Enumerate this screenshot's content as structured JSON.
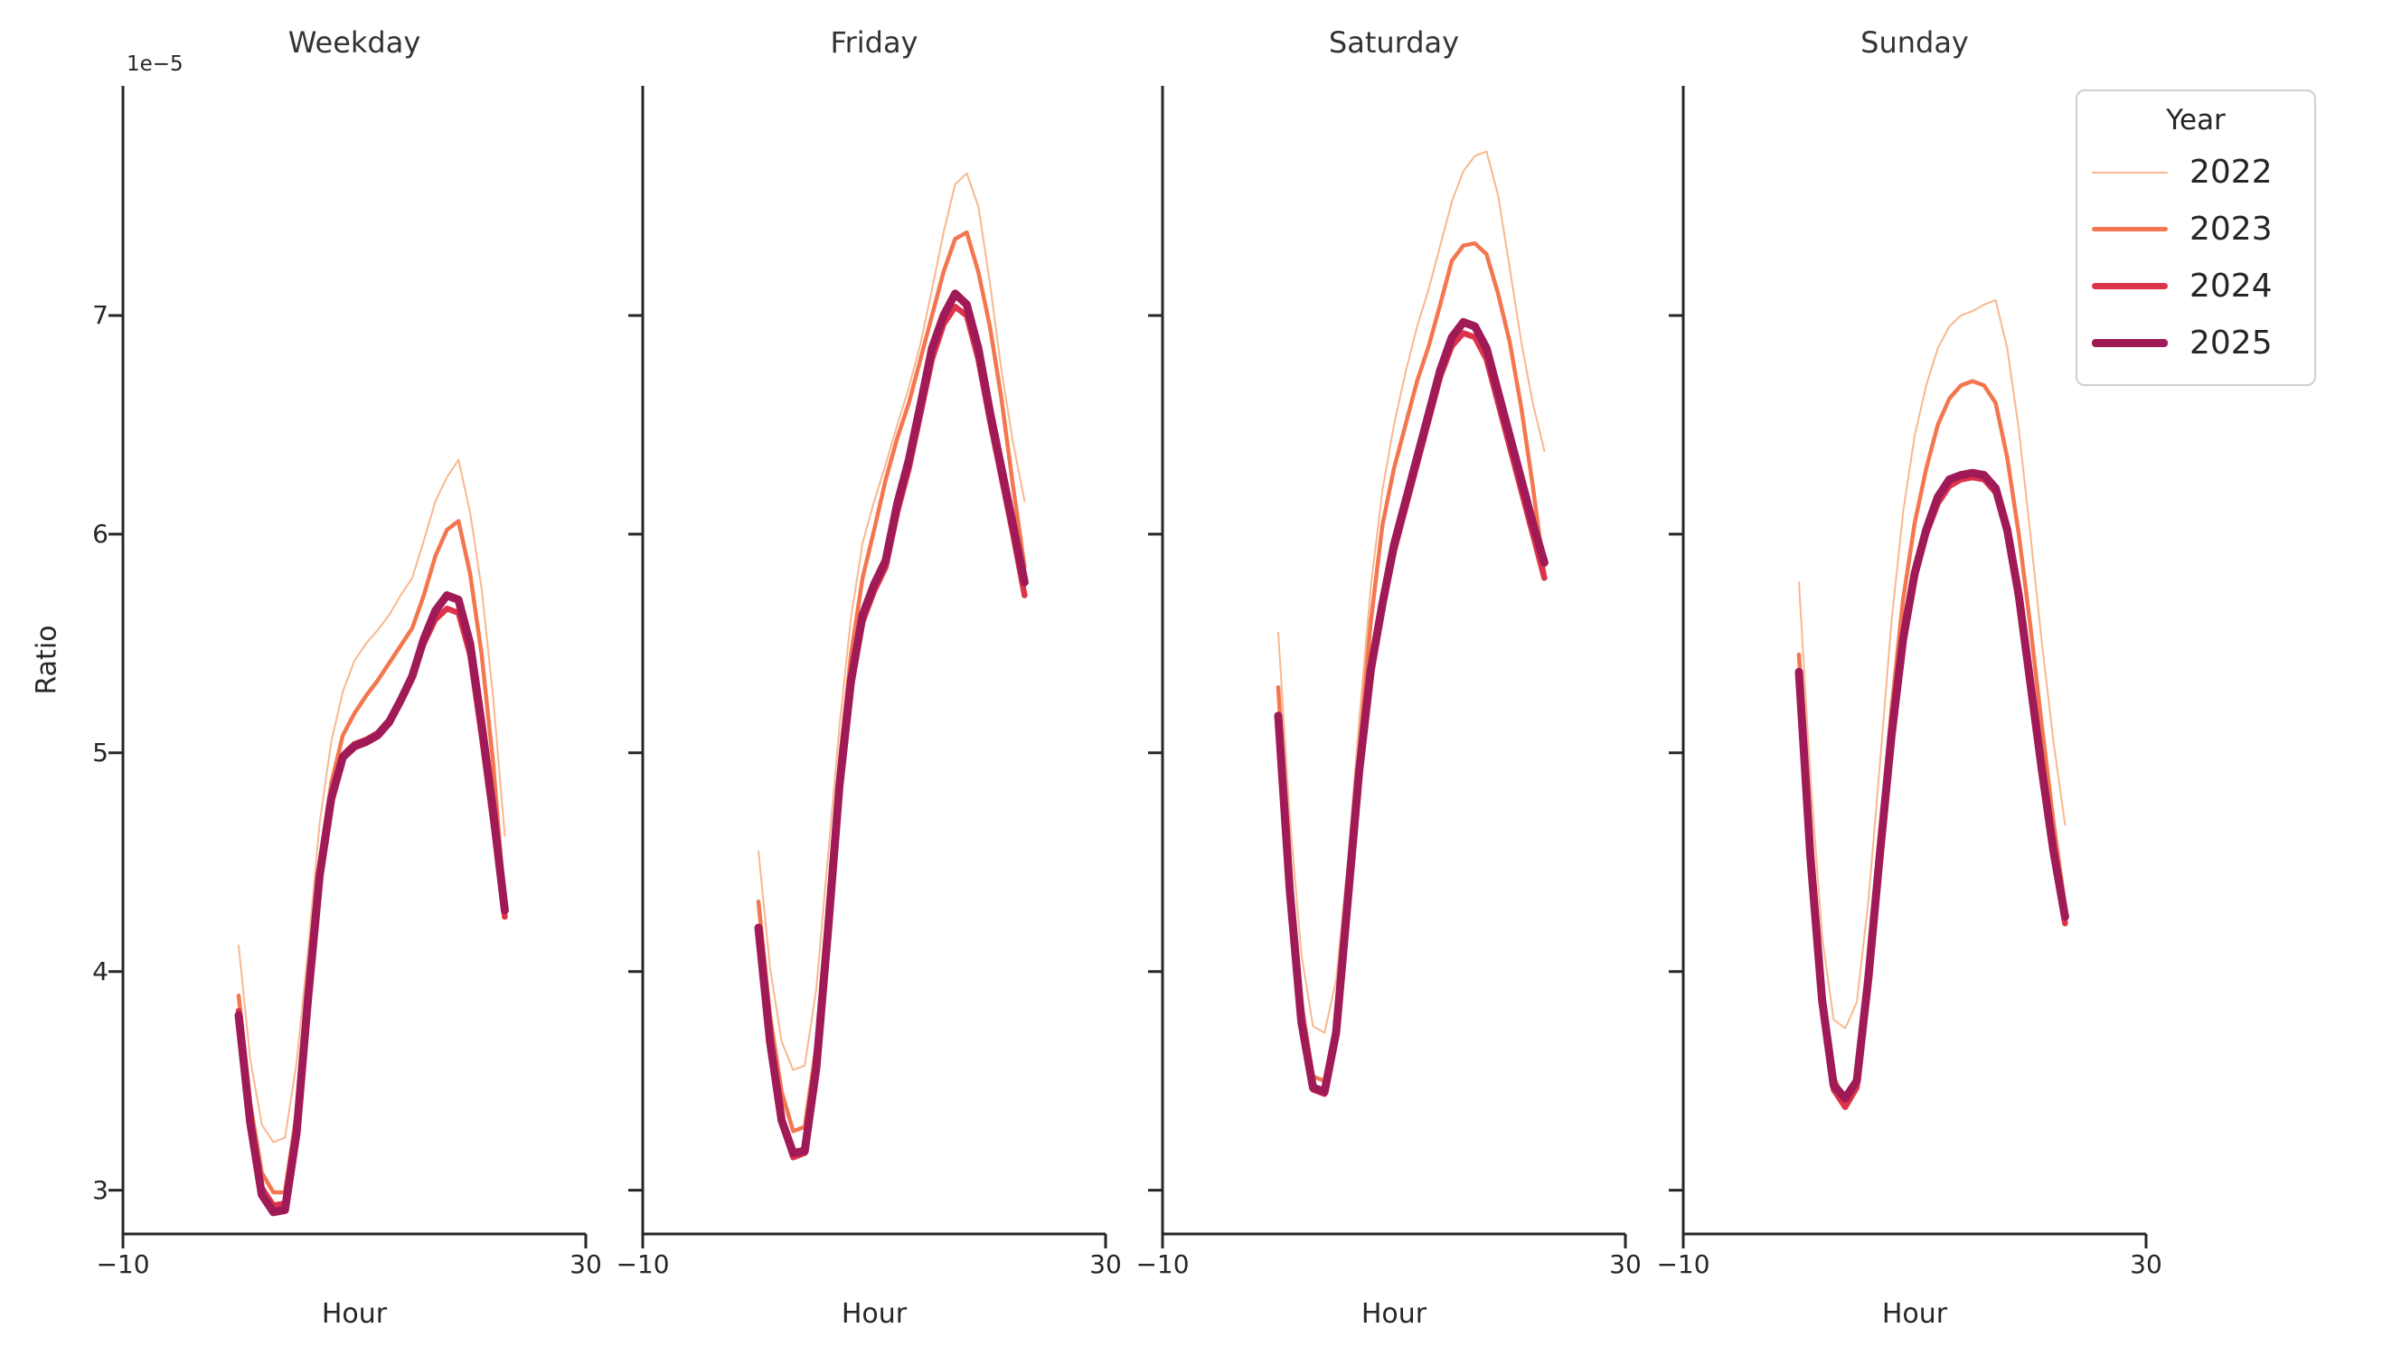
{
  "axes": {
    "ylabel": "Ratio",
    "xlabel": "Hour",
    "offset_label": "1e−5",
    "xlim": [
      -10,
      30
    ],
    "ylim": [
      2.8,
      8.05
    ],
    "xticks": [
      -10,
      30
    ],
    "xticklabels": [
      "−10",
      "30"
    ],
    "yticks": [
      3,
      4,
      5,
      6,
      7
    ],
    "yticklabels": [
      "3",
      "4",
      "5",
      "6",
      "7"
    ],
    "axis_color": "#262626",
    "grid": false
  },
  "legend": {
    "title": "Year",
    "position": "upper right",
    "entries": [
      {
        "label": "2022",
        "color": "#F8B78E",
        "linewidth": 2
      },
      {
        "label": "2023",
        "color": "#F4764F",
        "linewidth": 4.5
      },
      {
        "label": "2024",
        "color": "#DC3349",
        "linewidth": 6.5
      },
      {
        "label": "2025",
        "color": "#A01A58",
        "linewidth": 9
      }
    ]
  },
  "chart_data": [
    {
      "type": "line",
      "title": "Weekday",
      "xlabel": "Hour",
      "ylabel": "Ratio (1e-5)",
      "x": [
        0,
        1,
        2,
        3,
        4,
        5,
        6,
        7,
        8,
        9,
        10,
        11,
        12,
        13,
        14,
        15,
        16,
        17,
        18,
        19,
        20,
        21,
        22,
        23
      ],
      "series": [
        {
          "name": "2022",
          "color": "#F8B78E",
          "linewidth": 2,
          "values": [
            4.12,
            3.6,
            3.3,
            3.22,
            3.24,
            3.58,
            4.1,
            4.68,
            5.05,
            5.28,
            5.42,
            5.5,
            5.56,
            5.63,
            5.72,
            5.8,
            5.97,
            6.15,
            6.26,
            6.34,
            6.1,
            5.75,
            5.25,
            4.62
          ]
        },
        {
          "name": "2023",
          "color": "#F4764F",
          "linewidth": 4.5,
          "values": [
            3.89,
            3.4,
            3.08,
            2.99,
            2.99,
            3.35,
            3.95,
            4.5,
            4.86,
            5.08,
            5.18,
            5.26,
            5.33,
            5.41,
            5.49,
            5.57,
            5.72,
            5.9,
            6.02,
            6.06,
            5.82,
            5.45,
            4.95,
            4.3
          ]
        },
        {
          "name": "2024",
          "color": "#DC3349",
          "linewidth": 6.5,
          "values": [
            3.82,
            3.33,
            3.01,
            2.93,
            2.94,
            3.28,
            3.9,
            4.46,
            4.8,
            4.99,
            5.04,
            5.06,
            5.09,
            5.15,
            5.25,
            5.36,
            5.5,
            5.61,
            5.66,
            5.64,
            5.45,
            5.08,
            4.68,
            4.25
          ]
        },
        {
          "name": "2025",
          "color": "#A01A58",
          "linewidth": 9,
          "values": [
            3.8,
            3.31,
            2.98,
            2.9,
            2.91,
            3.26,
            3.88,
            4.44,
            4.79,
            4.98,
            5.03,
            5.05,
            5.08,
            5.14,
            5.24,
            5.35,
            5.52,
            5.65,
            5.72,
            5.7,
            5.5,
            5.13,
            4.73,
            4.28
          ]
        }
      ]
    },
    {
      "type": "line",
      "title": "Friday",
      "xlabel": "Hour",
      "ylabel": "Ratio (1e-5)",
      "x": [
        0,
        1,
        2,
        3,
        4,
        5,
        6,
        7,
        8,
        9,
        10,
        11,
        12,
        13,
        14,
        15,
        16,
        17,
        18,
        19,
        20,
        21,
        22,
        23
      ],
      "series": [
        {
          "name": "2022",
          "color": "#F8B78E",
          "linewidth": 2,
          "values": [
            4.55,
            4.02,
            3.68,
            3.55,
            3.57,
            3.92,
            4.52,
            5.12,
            5.62,
            5.96,
            6.15,
            6.32,
            6.5,
            6.67,
            6.87,
            7.12,
            7.38,
            7.6,
            7.65,
            7.5,
            7.15,
            6.75,
            6.42,
            6.15
          ]
        },
        {
          "name": "2023",
          "color": "#F4764F",
          "linewidth": 4.5,
          "values": [
            4.32,
            3.8,
            3.45,
            3.27,
            3.29,
            3.66,
            4.3,
            4.95,
            5.45,
            5.8,
            6.02,
            6.25,
            6.44,
            6.6,
            6.8,
            7.0,
            7.2,
            7.35,
            7.38,
            7.2,
            6.95,
            6.62,
            6.22,
            5.85
          ]
        },
        {
          "name": "2024",
          "color": "#DC3349",
          "linewidth": 6.5,
          "values": [
            4.18,
            3.66,
            3.31,
            3.15,
            3.17,
            3.55,
            4.16,
            4.82,
            5.3,
            5.6,
            5.74,
            5.85,
            6.1,
            6.3,
            6.55,
            6.8,
            6.96,
            7.04,
            7.0,
            6.8,
            6.52,
            6.26,
            6.0,
            5.72
          ]
        },
        {
          "name": "2025",
          "color": "#A01A58",
          "linewidth": 9,
          "values": [
            4.2,
            3.68,
            3.32,
            3.17,
            3.18,
            3.56,
            4.18,
            4.85,
            5.33,
            5.63,
            5.77,
            5.88,
            6.14,
            6.34,
            6.59,
            6.85,
            7.0,
            7.1,
            7.05,
            6.85,
            6.56,
            6.3,
            6.04,
            5.78
          ]
        }
      ]
    },
    {
      "type": "line",
      "title": "Saturday",
      "xlabel": "Hour",
      "ylabel": "Ratio (1e-5)",
      "x": [
        0,
        1,
        2,
        3,
        4,
        5,
        6,
        7,
        8,
        9,
        10,
        11,
        12,
        13,
        14,
        15,
        16,
        17,
        18,
        19,
        20,
        21,
        22,
        23
      ],
      "series": [
        {
          "name": "2022",
          "color": "#F8B78E",
          "linewidth": 2,
          "values": [
            5.55,
            4.7,
            4.08,
            3.75,
            3.72,
            3.96,
            4.5,
            5.15,
            5.76,
            6.2,
            6.5,
            6.74,
            6.95,
            7.12,
            7.32,
            7.52,
            7.66,
            7.73,
            7.75,
            7.55,
            7.22,
            6.88,
            6.6,
            6.38
          ]
        },
        {
          "name": "2023",
          "color": "#F4764F",
          "linewidth": 4.5,
          "values": [
            5.3,
            4.46,
            3.86,
            3.52,
            3.5,
            3.76,
            4.35,
            5.0,
            5.6,
            6.04,
            6.3,
            6.5,
            6.7,
            6.86,
            7.05,
            7.25,
            7.32,
            7.33,
            7.28,
            7.1,
            6.88,
            6.58,
            6.22,
            5.82
          ]
        },
        {
          "name": "2024",
          "color": "#DC3349",
          "linewidth": 6.5,
          "values": [
            5.15,
            4.35,
            3.76,
            3.46,
            3.44,
            3.7,
            4.3,
            4.9,
            5.36,
            5.66,
            5.92,
            6.12,
            6.32,
            6.52,
            6.72,
            6.86,
            6.92,
            6.9,
            6.8,
            6.6,
            6.4,
            6.2,
            6.0,
            5.8
          ]
        },
        {
          "name": "2025",
          "color": "#A01A58",
          "linewidth": 9,
          "values": [
            5.17,
            4.37,
            3.77,
            3.47,
            3.45,
            3.72,
            4.32,
            4.92,
            5.38,
            5.68,
            5.95,
            6.15,
            6.35,
            6.55,
            6.75,
            6.9,
            6.97,
            6.95,
            6.85,
            6.65,
            6.45,
            6.25,
            6.05,
            5.87
          ]
        }
      ]
    },
    {
      "type": "line",
      "title": "Sunday",
      "xlabel": "Hour",
      "ylabel": "Ratio (1e-5)",
      "x": [
        0,
        1,
        2,
        3,
        4,
        5,
        6,
        7,
        8,
        9,
        10,
        11,
        12,
        13,
        14,
        15,
        16,
        17,
        18,
        19,
        20,
        21,
        22,
        23
      ],
      "series": [
        {
          "name": "2022",
          "color": "#F8B78E",
          "linewidth": 2,
          "values": [
            5.78,
            4.88,
            4.16,
            3.78,
            3.74,
            3.86,
            4.32,
            4.95,
            5.6,
            6.1,
            6.45,
            6.68,
            6.85,
            6.95,
            7.0,
            7.02,
            7.05,
            7.07,
            6.85,
            6.48,
            6.0,
            5.5,
            5.05,
            4.67
          ]
        },
        {
          "name": "2023",
          "color": "#F4764F",
          "linewidth": 4.5,
          "values": [
            5.45,
            4.6,
            3.94,
            3.52,
            3.4,
            3.5,
            4.0,
            4.6,
            5.2,
            5.7,
            6.05,
            6.3,
            6.5,
            6.62,
            6.68,
            6.7,
            6.68,
            6.6,
            6.35,
            6.0,
            5.58,
            5.12,
            4.68,
            4.3
          ]
        },
        {
          "name": "2024",
          "color": "#DC3349",
          "linewidth": 6.5,
          "values": [
            5.35,
            4.5,
            3.85,
            3.46,
            3.38,
            3.47,
            3.95,
            4.52,
            5.06,
            5.5,
            5.8,
            6.0,
            6.14,
            6.22,
            6.25,
            6.26,
            6.25,
            6.19,
            6.0,
            5.7,
            5.3,
            4.9,
            4.53,
            4.22
          ]
        },
        {
          "name": "2025",
          "color": "#A01A58",
          "linewidth": 9,
          "values": [
            5.37,
            4.52,
            3.87,
            3.48,
            3.42,
            3.5,
            3.97,
            4.54,
            5.08,
            5.52,
            5.82,
            6.02,
            6.17,
            6.25,
            6.27,
            6.28,
            6.27,
            6.21,
            6.02,
            5.72,
            5.32,
            4.92,
            4.55,
            4.25
          ]
        }
      ]
    }
  ]
}
